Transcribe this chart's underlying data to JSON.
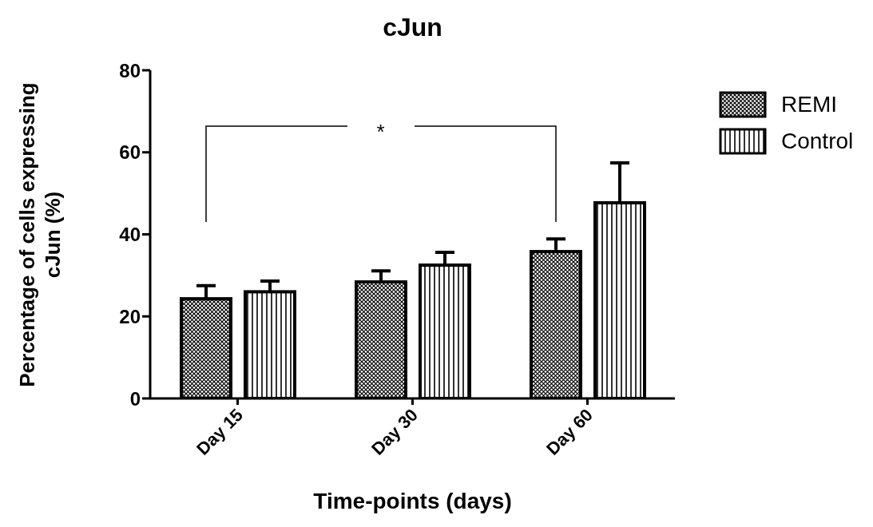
{
  "chart_data": {
    "type": "bar",
    "title": "cJun",
    "xlabel": "Time-points (days)",
    "ylabel": "Percentage of cells expressing cJun (%)",
    "categories": [
      "Day 15",
      "Day 30",
      "Day 60"
    ],
    "series": [
      {
        "name": "REMI",
        "color": "#000000",
        "values": [
          24.3,
          28.4,
          35.8
        ],
        "errors": [
          [
            24.3,
            27.5
          ],
          [
            28.4,
            31.1
          ],
          [
            35.8,
            38.9
          ]
        ]
      },
      {
        "name": "Control",
        "color": "#000000",
        "values": [
          26,
          32.5,
          47.7
        ],
        "errors": [
          [
            26,
            28.6
          ],
          [
            32.5,
            35.6
          ],
          [
            47.7,
            57.4
          ]
        ]
      }
    ],
    "ylim": [
      0,
      80
    ],
    "yticks": [
      0,
      20,
      40,
      60,
      80
    ],
    "grid": false,
    "legend": "right",
    "annotations": [
      "*"
    ]
  }
}
